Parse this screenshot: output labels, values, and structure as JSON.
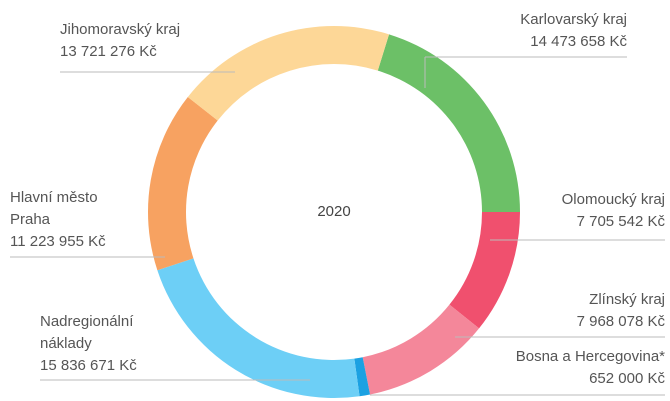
{
  "chart_data": {
    "type": "donut",
    "center_label": "2020",
    "categories": [
      "Karlovarský kraj",
      "Olomoucký kraj",
      "Zlínský kraj",
      "Bosna a Hercegovina*",
      "Nadregionální náklady",
      "Hlavní město Praha",
      "Jihomoravský kraj"
    ],
    "values": [
      14473658,
      7705542,
      7968078,
      652000,
      15836671,
      11223955,
      13721276
    ],
    "value_labels": [
      "14 473 658 Kč",
      "7 705 542 Kč",
      "7 968 078 Kč",
      "652 000 Kč",
      "15 836 671 Kč",
      "11 223 955 Kč",
      "13 721 276 Kč"
    ],
    "colors": [
      "#6cc067",
      "#f0506e",
      "#f4879a",
      "#1ba1e2",
      "#6dcff6",
      "#f7a261",
      "#fdd797"
    ]
  }
}
